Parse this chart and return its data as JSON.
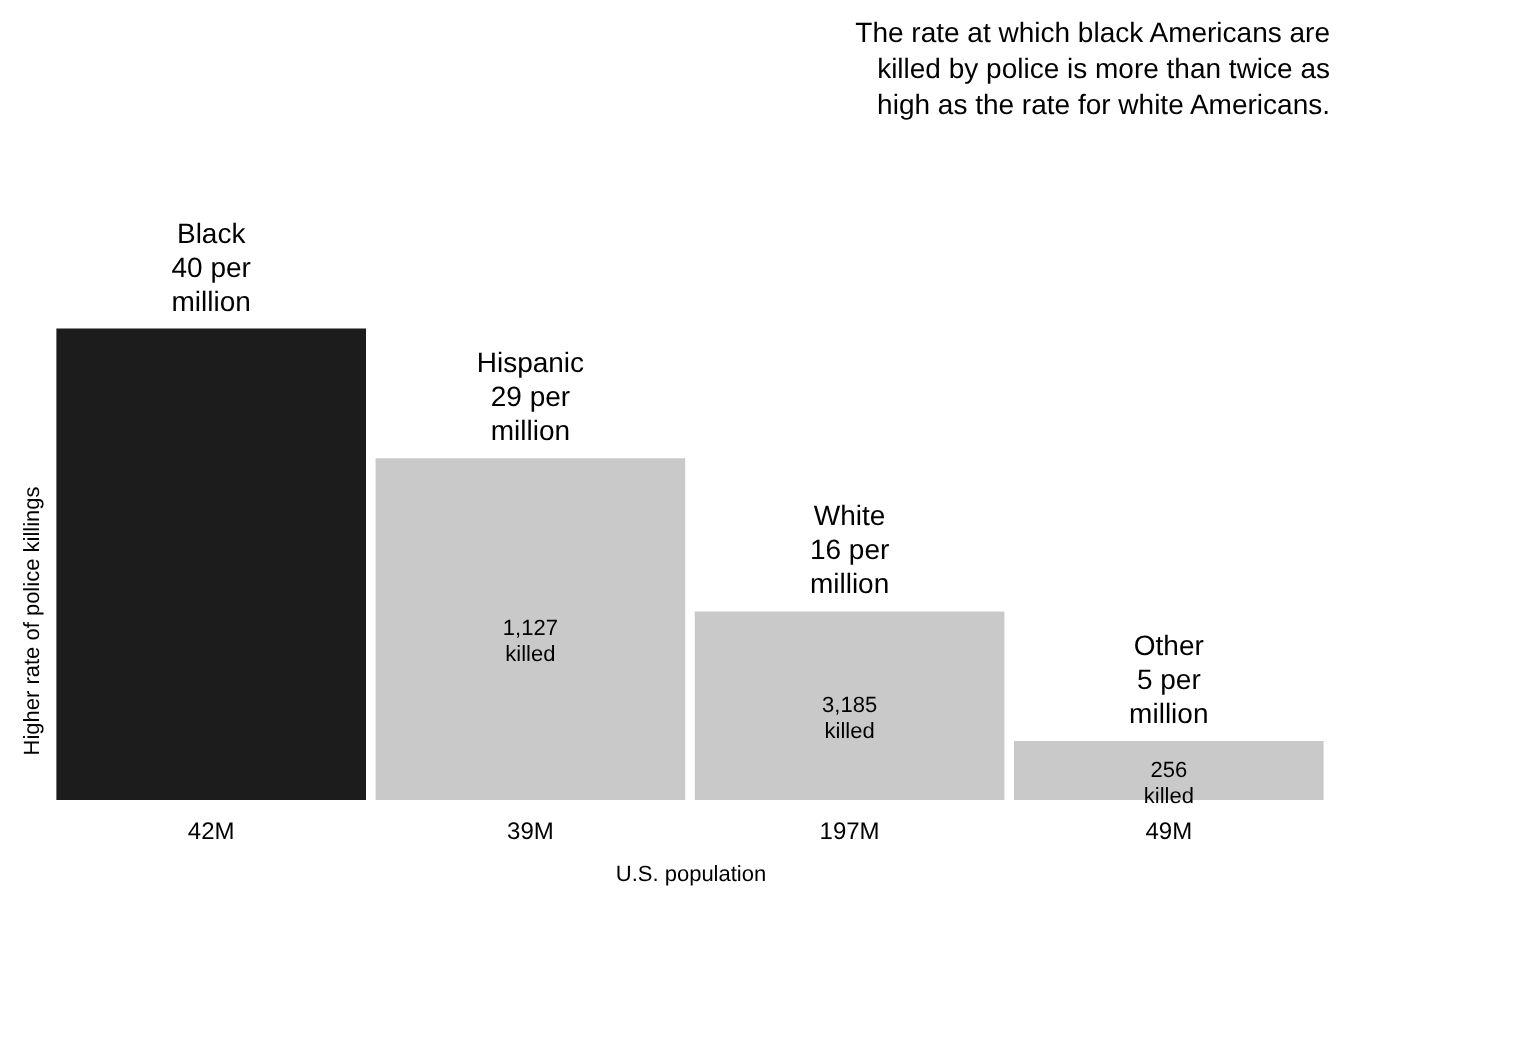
{
  "chart_data": {
    "type": "bar",
    "title": "The rate at which black Americans are killed by police is more than twice as high as the rate for white Americans.",
    "xlabel": "U.S. population",
    "ylabel": "Higher rate of police killings",
    "categories": [
      "42M",
      "39M",
      "197M",
      "49M"
    ],
    "values": [
      40,
      29,
      16,
      5
    ],
    "colors": [
      "#1c1c1c",
      "#c9c9c9",
      "#c9c9c9",
      "#c9c9c9"
    ],
    "value_labels": [
      "Black 40 per million",
      "Hispanic 29 per million",
      "White 16 per million",
      "Other 5 per million"
    ],
    "annotations": [
      "1,127 killed",
      "3,185 killed",
      "256 killed"
    ],
    "tick_labels": "x",
    "grid": false,
    "legend": false
  }
}
